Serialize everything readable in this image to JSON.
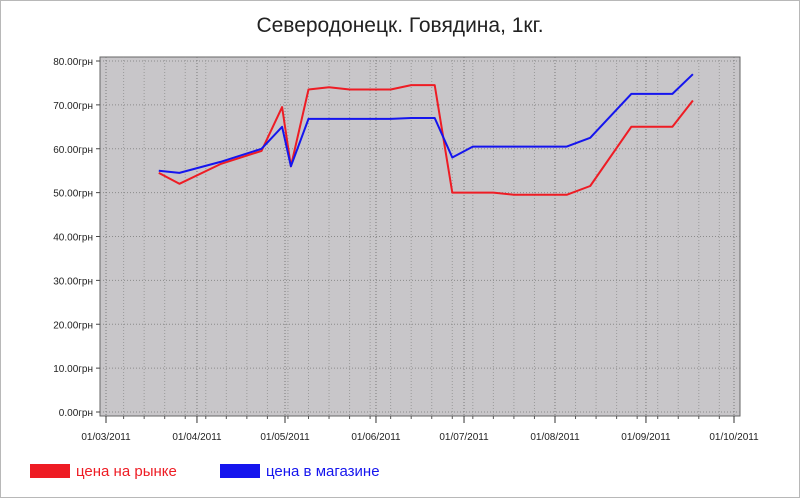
{
  "chart_data": {
    "type": "line",
    "title": "Северодонецк. Говядина, 1кг.",
    "xlabel": "",
    "ylabel": "",
    "x_ticks": [
      "01/03/2011",
      "01/04/2011",
      "01/05/2011",
      "01/06/2011",
      "01/07/2011",
      "01/08/2011",
      "01/09/2011",
      "01/10/2011"
    ],
    "xlim": [
      "2011-03-01",
      "2011-10-01"
    ],
    "y_ticks": [
      "0.00грн",
      "10.00грн",
      "20.00грн",
      "30.00грн",
      "40.00грн",
      "50.00грн",
      "60.00грн",
      "70.00грн",
      "80.00грн"
    ],
    "ylim": [
      0,
      80
    ],
    "grid": true,
    "legend_position": "bottom-left",
    "background_color": "#c8c6c9",
    "series": [
      {
        "name": "цена на рынке",
        "color": "#ee1c24",
        "points": [
          [
            "2011-03-19",
            54.5
          ],
          [
            "2011-03-26",
            52.0
          ],
          [
            "2011-04-09",
            56.5
          ],
          [
            "2011-04-23",
            59.5
          ],
          [
            "2011-04-30",
            69.5
          ],
          [
            "2011-05-03",
            56.0
          ],
          [
            "2011-05-09",
            73.5
          ],
          [
            "2011-05-16",
            74.0
          ],
          [
            "2011-05-23",
            73.5
          ],
          [
            "2011-06-06",
            73.5
          ],
          [
            "2011-06-13",
            74.5
          ],
          [
            "2011-06-21",
            74.5
          ],
          [
            "2011-06-27",
            50.0
          ],
          [
            "2011-07-11",
            50.0
          ],
          [
            "2011-07-18",
            49.5
          ],
          [
            "2011-08-05",
            49.5
          ],
          [
            "2011-08-13",
            51.5
          ],
          [
            "2011-08-27",
            65.0
          ],
          [
            "2011-09-10",
            65.0
          ],
          [
            "2011-09-17",
            71.0
          ]
        ]
      },
      {
        "name": "цена в магазине",
        "color": "#1515ee",
        "points": [
          [
            "2011-03-19",
            55.0
          ],
          [
            "2011-03-26",
            54.5
          ],
          [
            "2011-04-09",
            57.0
          ],
          [
            "2011-04-23",
            60.0
          ],
          [
            "2011-04-30",
            65.0
          ],
          [
            "2011-05-03",
            56.0
          ],
          [
            "2011-05-09",
            66.8
          ],
          [
            "2011-05-23",
            66.8
          ],
          [
            "2011-06-06",
            66.8
          ],
          [
            "2011-06-13",
            67.0
          ],
          [
            "2011-06-21",
            67.0
          ],
          [
            "2011-06-27",
            58.0
          ],
          [
            "2011-07-04",
            60.5
          ],
          [
            "2011-08-05",
            60.5
          ],
          [
            "2011-08-13",
            62.5
          ],
          [
            "2011-08-27",
            72.5
          ],
          [
            "2011-09-10",
            72.5
          ],
          [
            "2011-09-17",
            77.0
          ]
        ]
      }
    ]
  }
}
